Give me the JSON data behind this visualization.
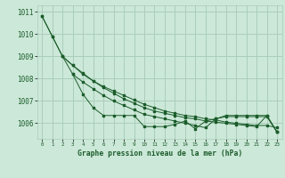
{
  "title": "Graphe pression niveau de la mer (hPa)",
  "background_color": "#cce8d8",
  "grid_color": "#aacebb",
  "line_color": "#1a5c2a",
  "xlim": [
    -0.5,
    23.5
  ],
  "ylim": [
    1005.3,
    1011.3
  ],
  "yticks": [
    1006,
    1007,
    1008,
    1009,
    1010,
    1011
  ],
  "ytick_labels": [
    "1006",
    "1007",
    "1008",
    "1009",
    "1010",
    "1011"
  ],
  "xticks": [
    0,
    1,
    2,
    3,
    4,
    5,
    6,
    7,
    8,
    9,
    10,
    11,
    12,
    13,
    14,
    15,
    16,
    17,
    18,
    19,
    20,
    21,
    22,
    23
  ],
  "series": [
    {
      "x": [
        0,
        1,
        2,
        3,
        4,
        5,
        6,
        7,
        8,
        9,
        10,
        11,
        12,
        13,
        14,
        15,
        16,
        17,
        18,
        19,
        20,
        21,
        22,
        23
      ],
      "y": [
        1010.8,
        1009.9,
        1009.0,
        1008.2,
        1007.3,
        1006.7,
        1006.35,
        1006.35,
        1006.35,
        1006.35,
        1005.85,
        1005.85,
        1005.85,
        1005.95,
        1006.1,
        1005.75,
        1006.1,
        1006.2,
        1006.3,
        1006.3,
        1006.3,
        1006.3,
        1006.3,
        1005.6
      ]
    },
    {
      "x": [
        0,
        1,
        2,
        3,
        4,
        5,
        6,
        7,
        8,
        9,
        10,
        11,
        12,
        13,
        14,
        15,
        16,
        17,
        18,
        19,
        20,
        21,
        22,
        23
      ],
      "y": [
        1010.8,
        1009.9,
        1009.0,
        1008.6,
        1008.2,
        1007.9,
        1007.65,
        1007.45,
        1007.25,
        1007.05,
        1006.85,
        1006.7,
        1006.55,
        1006.45,
        1006.35,
        1006.3,
        1006.2,
        1006.15,
        1006.05,
        1006.0,
        1005.95,
        1005.9,
        1005.9,
        1005.8
      ]
    },
    {
      "x": [
        2,
        3,
        4,
        5,
        6,
        7,
        8,
        9,
        10,
        11,
        12,
        13,
        14,
        15,
        16,
        17,
        18,
        19,
        20,
        21,
        22,
        23
      ],
      "y": [
        1009.0,
        1008.6,
        1008.25,
        1007.9,
        1007.6,
        1007.35,
        1007.1,
        1006.9,
        1006.7,
        1006.55,
        1006.45,
        1006.35,
        1006.25,
        1006.2,
        1006.1,
        1006.05,
        1006.0,
        1005.95,
        1005.9,
        1005.85,
        1006.35,
        1005.6
      ]
    },
    {
      "x": [
        3,
        4,
        5,
        6,
        7,
        8,
        9,
        10,
        11,
        12,
        13,
        14,
        15,
        16,
        17,
        18,
        19,
        20,
        21,
        22,
        23
      ],
      "y": [
        1008.2,
        1007.85,
        1007.55,
        1007.25,
        1007.0,
        1006.8,
        1006.6,
        1006.4,
        1006.3,
        1006.2,
        1006.1,
        1006.0,
        1005.9,
        1005.8,
        1006.2,
        1006.35,
        1006.35,
        1006.35,
        1006.35,
        1006.35,
        1005.6
      ]
    }
  ]
}
